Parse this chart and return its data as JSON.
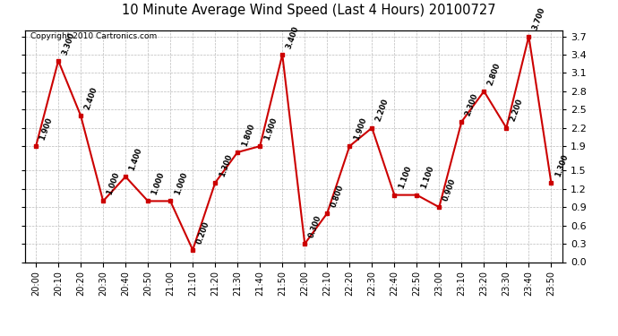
{
  "title": "10 Minute Average Wind Speed (Last 4 Hours) 20100727",
  "copyright": "Copyright 2010 Cartronics.com",
  "x_labels": [
    "20:00",
    "20:10",
    "20:20",
    "20:30",
    "20:40",
    "20:50",
    "21:00",
    "21:10",
    "21:20",
    "21:30",
    "21:40",
    "21:50",
    "22:00",
    "22:10",
    "22:20",
    "22:30",
    "22:40",
    "22:50",
    "23:00",
    "23:10",
    "23:20",
    "23:30",
    "23:40",
    "23:50"
  ],
  "y_values": [
    1.9,
    3.3,
    2.4,
    1.0,
    1.4,
    1.0,
    1.0,
    0.2,
    1.3,
    1.8,
    1.9,
    3.4,
    0.3,
    0.8,
    1.9,
    2.2,
    1.1,
    1.1,
    0.9,
    2.3,
    2.8,
    2.2,
    3.7,
    1.3
  ],
  "line_color": "#cc0000",
  "marker_color": "#cc0000",
  "bg_color": "#ffffff",
  "grid_color": "#bbbbbb",
  "ylim": [
    0.0,
    3.8
  ],
  "yticks": [
    0.0,
    0.3,
    0.6,
    0.9,
    1.2,
    1.5,
    1.9,
    2.2,
    2.5,
    2.8,
    3.1,
    3.4,
    3.7
  ],
  "label_values": [
    "1.900",
    "3.300",
    "2.400",
    "1.000",
    "1.400",
    "1.000",
    "1.000",
    "0.200",
    "1.300",
    "1.800",
    "1.900",
    "3.400",
    "0.300",
    "0.800",
    "1.900",
    "2.200",
    "1.100",
    "1.100",
    "0.900",
    "2.300",
    "2.800",
    "2.200",
    "3.700",
    "1.300"
  ]
}
